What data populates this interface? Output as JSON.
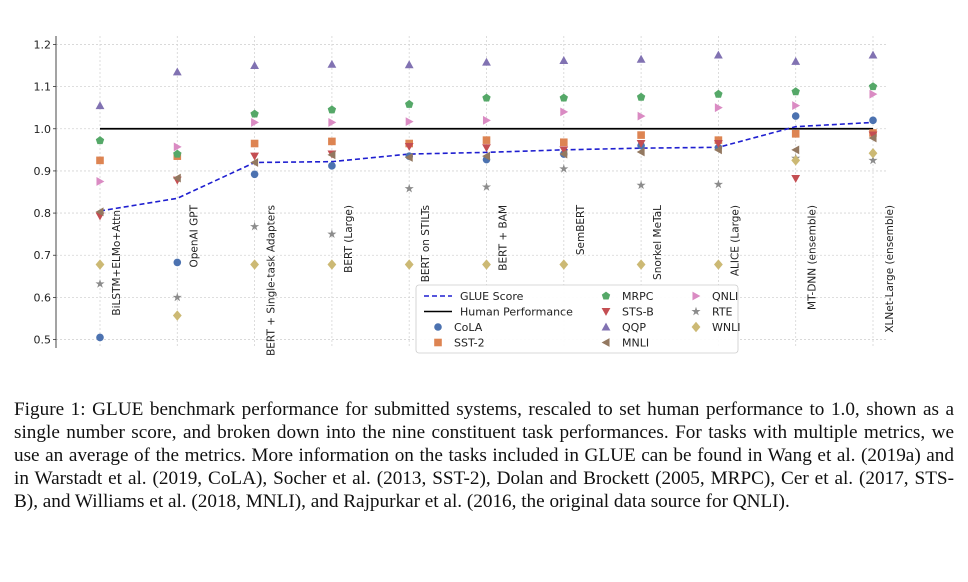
{
  "chart_data": {
    "type": "scatter",
    "categories": [
      "BiLSTM+ELMo+Attn",
      "OpenAI GPT",
      "BERT + Single-task Adapters",
      "BERT (Large)",
      "BERT on STILTs",
      "BERT + BAM",
      "SemBERT",
      "Snorkel MeTaL",
      "ALICE (Large)",
      "MT-DNN (ensemble)",
      "XLNet-Large (ensemble)"
    ],
    "yticks": [
      "0.5",
      "0.6",
      "0.7",
      "0.8",
      "0.9",
      "1.0",
      "1.1",
      "1.2"
    ],
    "ylim": [
      0.48,
      1.22
    ],
    "grid": true,
    "legend_position": "lower-right",
    "glue_score": {
      "name": "GLUE Score",
      "color": "#1f1fd0",
      "values": [
        0.805,
        0.835,
        0.92,
        0.922,
        0.94,
        0.944,
        0.95,
        0.954,
        0.956,
        1.005,
        1.015
      ]
    },
    "human_performance": {
      "name": "Human Performance",
      "color": "#000000",
      "value": 1.0
    },
    "series": [
      {
        "name": "CoLA",
        "marker": "circle",
        "color": "#4c72b0",
        "values": [
          0.505,
          0.683,
          0.892,
          0.912,
          0.935,
          0.927,
          0.94,
          0.96,
          0.955,
          1.03,
          1.02
        ]
      },
      {
        "name": "SST-2",
        "marker": "square",
        "color": "#dd8452",
        "values": [
          0.925,
          0.935,
          0.965,
          0.97,
          0.965,
          0.973,
          0.968,
          0.985,
          0.973,
          0.988,
          0.99
        ]
      },
      {
        "name": "MRPC",
        "marker": "pentagon",
        "color": "#55a868",
        "values": [
          0.972,
          0.94,
          1.035,
          1.045,
          1.058,
          1.073,
          1.073,
          1.075,
          1.082,
          1.088,
          1.1
        ]
      },
      {
        "name": "STS-B",
        "marker": "triangle-down",
        "color": "#c44e52",
        "values": [
          0.793,
          0.878,
          0.935,
          0.94,
          0.958,
          0.955,
          0.95,
          0.965,
          0.965,
          0.882,
          0.985
        ]
      },
      {
        "name": "QQP",
        "marker": "triangle-up",
        "color": "#8172b2",
        "values": [
          1.055,
          1.135,
          1.15,
          1.153,
          1.152,
          1.158,
          1.162,
          1.165,
          1.175,
          1.16,
          1.175
        ]
      },
      {
        "name": "MNLI",
        "marker": "triangle-left",
        "color": "#937860",
        "values": [
          0.803,
          0.883,
          0.92,
          0.938,
          0.932,
          0.935,
          0.94,
          0.945,
          0.95,
          0.95,
          0.978
        ]
      },
      {
        "name": "QNLI",
        "marker": "triangle-right",
        "color": "#da8bc3",
        "values": [
          0.875,
          0.957,
          1.015,
          1.015,
          1.017,
          1.02,
          1.04,
          1.03,
          1.05,
          1.055,
          1.082
        ]
      },
      {
        "name": "RTE",
        "marker": "star",
        "color": "#8c8c8c",
        "values": [
          0.632,
          0.6,
          0.768,
          0.75,
          0.858,
          0.862,
          0.905,
          0.866,
          0.868,
          0.93,
          0.925
        ]
      },
      {
        "name": "WNLI",
        "marker": "diamond",
        "color": "#ccb974",
        "values": [
          0.678,
          0.557,
          0.678,
          0.678,
          0.678,
          0.678,
          0.678,
          0.678,
          0.678,
          0.925,
          0.942
        ]
      }
    ]
  },
  "caption": "Figure 1: GLUE benchmark performance for submitted systems, rescaled to set human performance to 1.0, shown as a single number score, and broken down into the nine constituent task performances. For tasks with multiple metrics, we use an average of the metrics. More information on the tasks included in GLUE can be found in Wang et al. (2019a) and in Warstadt et al. (2019, CoLA), Socher et al. (2013, SST-2), Dolan and Brockett (2005, MRPC), Cer et al. (2017, STS-B), and Williams et al. (2018, MNLI), and Rajpurkar et al. (2016, the original data source for QNLI)."
}
